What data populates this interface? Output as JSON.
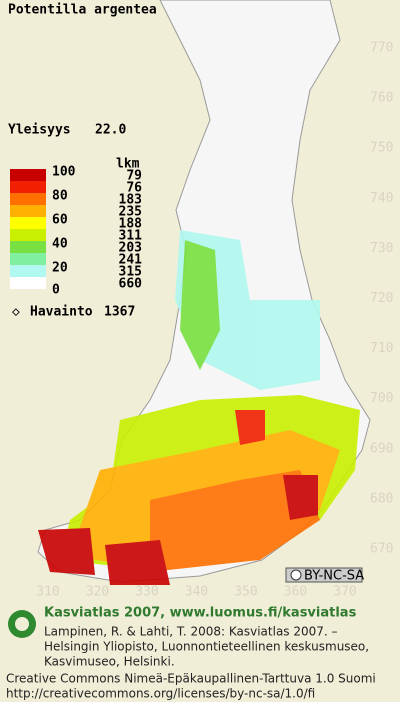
{
  "title": "Potentilla argentea",
  "frequency": {
    "label": "Yleisyys",
    "value": "22.0"
  },
  "legend": {
    "scale_labels": [
      "100",
      "80",
      "60",
      "40",
      "20",
      "0"
    ],
    "count_header": "lkm",
    "classes": [
      {
        "color": "#c80000",
        "count": 79
      },
      {
        "color": "#f02000",
        "count": 76
      },
      {
        "color": "#ff7000",
        "count": 183
      },
      {
        "color": "#ffb000",
        "count": 235
      },
      {
        "color": "#ffff00",
        "count": 188
      },
      {
        "color": "#c8f000",
        "count": 311
      },
      {
        "color": "#78e040",
        "count": 203
      },
      {
        "color": "#80f0a0",
        "count": 241
      },
      {
        "color": "#b0f8f0",
        "count": 315
      },
      {
        "color": "#ffffff",
        "count": 660
      }
    ]
  },
  "observations": {
    "label": "Havainto",
    "count": 1367
  },
  "y_axis_labels": [
    770,
    760,
    750,
    740,
    730,
    720,
    710,
    700,
    690,
    680,
    670
  ],
  "x_axis_labels": [
    310,
    320,
    330,
    340,
    350,
    360,
    370
  ],
  "license_badge": "BY-NC-SA",
  "footer": {
    "heading": "Kasviatlas 2007, www.luomus.fi/kasviatlas",
    "citation": [
      "Lampinen, R. & Lahti, T. 2008: Kasviatlas 2007. –",
      "Helsingin Yliopisto, Luonnontieteellinen keskusmuseo,",
      "Kasvimuseo, Helsinki."
    ],
    "license": [
      "Creative Commons Nimeä-Epäkaupallinen-Tarttuva 1.0 Suomi",
      "http://creativecommons.org/licenses/by-nc-sa/1.0/fi"
    ]
  }
}
